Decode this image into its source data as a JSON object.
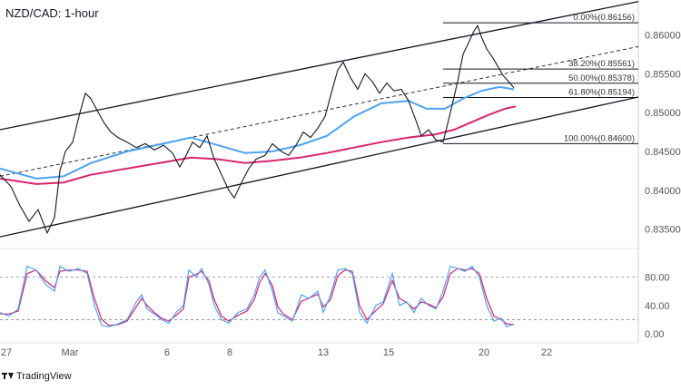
{
  "chart_data": [
    {
      "type": "line",
      "title": "NZD/CAD: 1-hour",
      "brand": "TradingView",
      "x_ticks": [
        "27",
        "Mar",
        "6",
        "8",
        "13",
        "15",
        "20",
        "22"
      ],
      "y_ticks": [
        "0.86000",
        "0.85500",
        "0.85000",
        "0.84500",
        "0.84000",
        "0.83500"
      ],
      "ylim": [
        0.8325,
        0.8645
      ],
      "colors": {
        "price": "#131722",
        "ma_fast": "#4ea3ef",
        "ma_slow": "#d6246e",
        "channel": "#131722"
      },
      "price_path": [
        [
          0,
          0.842
        ],
        [
          12,
          0.8405
        ],
        [
          22,
          0.838
        ],
        [
          32,
          0.836
        ],
        [
          42,
          0.8375
        ],
        [
          52,
          0.8345
        ],
        [
          60,
          0.8365
        ],
        [
          66,
          0.8425
        ],
        [
          72,
          0.845
        ],
        [
          80,
          0.8462
        ],
        [
          88,
          0.85
        ],
        [
          94,
          0.8525
        ],
        [
          100,
          0.8518
        ],
        [
          106,
          0.8505
        ],
        [
          114,
          0.8488
        ],
        [
          122,
          0.8475
        ],
        [
          130,
          0.8468
        ],
        [
          140,
          0.8462
        ],
        [
          150,
          0.8455
        ],
        [
          160,
          0.846
        ],
        [
          170,
          0.8452
        ],
        [
          180,
          0.8458
        ],
        [
          190,
          0.8448
        ],
        [
          198,
          0.843
        ],
        [
          205,
          0.8445
        ],
        [
          212,
          0.8462
        ],
        [
          220,
          0.8455
        ],
        [
          228,
          0.847
        ],
        [
          236,
          0.844
        ],
        [
          244,
          0.842
        ],
        [
          252,
          0.84
        ],
        [
          258,
          0.839
        ],
        [
          266,
          0.841
        ],
        [
          274,
          0.8428
        ],
        [
          282,
          0.844
        ],
        [
          292,
          0.8445
        ],
        [
          300,
          0.846
        ],
        [
          310,
          0.845
        ],
        [
          318,
          0.8445
        ],
        [
          326,
          0.8458
        ],
        [
          334,
          0.8475
        ],
        [
          342,
          0.8468
        ],
        [
          350,
          0.848
        ],
        [
          358,
          0.8495
        ],
        [
          366,
          0.853
        ],
        [
          372,
          0.8555
        ],
        [
          378,
          0.8565
        ],
        [
          386,
          0.8545
        ],
        [
          394,
          0.853
        ],
        [
          402,
          0.855
        ],
        [
          410,
          0.854
        ],
        [
          418,
          0.8525
        ],
        [
          426,
          0.8538
        ],
        [
          434,
          0.8528
        ],
        [
          442,
          0.853
        ],
        [
          450,
          0.8515
        ],
        [
          458,
          0.849
        ],
        [
          464,
          0.847
        ],
        [
          472,
          0.8478
        ],
        [
          480,
          0.8465
        ],
        [
          488,
          0.8462
        ],
        [
          496,
          0.85
        ],
        [
          504,
          0.854
        ],
        [
          510,
          0.8575
        ],
        [
          516,
          0.859
        ],
        [
          522,
          0.8605
        ],
        [
          526,
          0.8612
        ],
        [
          530,
          0.8598
        ],
        [
          536,
          0.8582
        ],
        [
          542,
          0.8572
        ],
        [
          548,
          0.856
        ],
        [
          554,
          0.8548
        ],
        [
          560,
          0.854
        ],
        [
          566,
          0.8532
        ]
      ],
      "ma_fast_path": [
        [
          0,
          0.8428
        ],
        [
          40,
          0.8415
        ],
        [
          70,
          0.8418
        ],
        [
          100,
          0.8435
        ],
        [
          140,
          0.845
        ],
        [
          180,
          0.846
        ],
        [
          210,
          0.8468
        ],
        [
          240,
          0.8458
        ],
        [
          270,
          0.8448
        ],
        [
          300,
          0.845
        ],
        [
          330,
          0.8458
        ],
        [
          360,
          0.847
        ],
        [
          390,
          0.8495
        ],
        [
          420,
          0.8512
        ],
        [
          450,
          0.8515
        ],
        [
          470,
          0.8505
        ],
        [
          490,
          0.8505
        ],
        [
          510,
          0.8518
        ],
        [
          530,
          0.8528
        ],
        [
          550,
          0.8533
        ],
        [
          566,
          0.853
        ]
      ],
      "ma_slow_path": [
        [
          0,
          0.8415
        ],
        [
          40,
          0.8408
        ],
        [
          70,
          0.841
        ],
        [
          100,
          0.842
        ],
        [
          140,
          0.8428
        ],
        [
          180,
          0.8436
        ],
        [
          210,
          0.8442
        ],
        [
          240,
          0.844
        ],
        [
          270,
          0.8435
        ],
        [
          300,
          0.8438
        ],
        [
          330,
          0.8442
        ],
        [
          360,
          0.8448
        ],
        [
          390,
          0.8455
        ],
        [
          420,
          0.8462
        ],
        [
          450,
          0.8468
        ],
        [
          480,
          0.8472
        ],
        [
          500,
          0.8478
        ],
        [
          520,
          0.8488
        ],
        [
          540,
          0.8498
        ],
        [
          556,
          0.8505
        ],
        [
          568,
          0.8508
        ]
      ],
      "channel_upper": [
        [
          0,
          0.8478
        ],
        [
          703,
          0.8643
        ]
      ],
      "channel_mid": [
        [
          0,
          0.8418
        ],
        [
          703,
          0.8585
        ]
      ],
      "channel_lower": [
        [
          0,
          0.834
        ],
        [
          703,
          0.852
        ]
      ],
      "fib_levels": [
        {
          "label": "0.00%(0.86156)",
          "value": 0.86156
        },
        {
          "label": "38.20%(0.85561)",
          "value": 0.85561
        },
        {
          "label": "50.00%(0.85378)",
          "value": 0.85378
        },
        {
          "label": "61.80%(0.85194)",
          "value": 0.85194
        },
        {
          "label": "100.00%(0.84600)",
          "value": 0.846
        }
      ]
    },
    {
      "type": "line",
      "title": "",
      "y_ticks": [
        "80.00",
        "40.00",
        "0.00"
      ],
      "ylim": [
        -5,
        110
      ],
      "overbought": 80,
      "oversold": 20,
      "colors": {
        "k_line": "#4ea3ef",
        "d_line": "#d6246e"
      },
      "k_path": [
        [
          0,
          30
        ],
        [
          10,
          25
        ],
        [
          20,
          35
        ],
        [
          30,
          95
        ],
        [
          40,
          90
        ],
        [
          50,
          70
        ],
        [
          60,
          60
        ],
        [
          66,
          95
        ],
        [
          76,
          88
        ],
        [
          86,
          92
        ],
        [
          96,
          85
        ],
        [
          104,
          40
        ],
        [
          112,
          12
        ],
        [
          120,
          10
        ],
        [
          130,
          14
        ],
        [
          140,
          20
        ],
        [
          150,
          45
        ],
        [
          156,
          55
        ],
        [
          162,
          35
        ],
        [
          170,
          28
        ],
        [
          178,
          20
        ],
        [
          186,
          15
        ],
        [
          194,
          30
        ],
        [
          202,
          40
        ],
        [
          208,
          90
        ],
        [
          216,
          80
        ],
        [
          222,
          92
        ],
        [
          230,
          70
        ],
        [
          236,
          40
        ],
        [
          244,
          20
        ],
        [
          252,
          15
        ],
        [
          262,
          30
        ],
        [
          272,
          35
        ],
        [
          280,
          55
        ],
        [
          286,
          80
        ],
        [
          292,
          90
        ],
        [
          300,
          60
        ],
        [
          306,
          30
        ],
        [
          312,
          25
        ],
        [
          322,
          18
        ],
        [
          332,
          55
        ],
        [
          340,
          50
        ],
        [
          350,
          60
        ],
        [
          356,
          30
        ],
        [
          364,
          55
        ],
        [
          372,
          90
        ],
        [
          380,
          92
        ],
        [
          388,
          85
        ],
        [
          396,
          30
        ],
        [
          404,
          15
        ],
        [
          414,
          40
        ],
        [
          422,
          45
        ],
        [
          432,
          85
        ],
        [
          440,
          40
        ],
        [
          448,
          45
        ],
        [
          456,
          30
        ],
        [
          464,
          50
        ],
        [
          472,
          40
        ],
        [
          480,
          35
        ],
        [
          488,
          60
        ],
        [
          496,
          95
        ],
        [
          504,
          92
        ],
        [
          512,
          88
        ],
        [
          520,
          95
        ],
        [
          528,
          80
        ],
        [
          536,
          40
        ],
        [
          544,
          18
        ],
        [
          552,
          22
        ],
        [
          558,
          10
        ],
        [
          566,
          14
        ]
      ],
      "d_path": [
        [
          0,
          28
        ],
        [
          10,
          28
        ],
        [
          20,
          32
        ],
        [
          30,
          85
        ],
        [
          40,
          90
        ],
        [
          50,
          75
        ],
        [
          60,
          65
        ],
        [
          66,
          88
        ],
        [
          76,
          90
        ],
        [
          86,
          90
        ],
        [
          96,
          88
        ],
        [
          104,
          50
        ],
        [
          112,
          20
        ],
        [
          120,
          12
        ],
        [
          130,
          13
        ],
        [
          140,
          18
        ],
        [
          150,
          38
        ],
        [
          156,
          50
        ],
        [
          162,
          40
        ],
        [
          170,
          30
        ],
        [
          178,
          22
        ],
        [
          186,
          18
        ],
        [
          194,
          26
        ],
        [
          202,
          35
        ],
        [
          208,
          80
        ],
        [
          216,
          84
        ],
        [
          222,
          88
        ],
        [
          230,
          75
        ],
        [
          236,
          48
        ],
        [
          244,
          25
        ],
        [
          252,
          18
        ],
        [
          262,
          26
        ],
        [
          272,
          32
        ],
        [
          280,
          48
        ],
        [
          286,
          72
        ],
        [
          292,
          85
        ],
        [
          300,
          68
        ],
        [
          306,
          38
        ],
        [
          312,
          28
        ],
        [
          322,
          20
        ],
        [
          332,
          46
        ],
        [
          340,
          50
        ],
        [
          350,
          56
        ],
        [
          356,
          38
        ],
        [
          364,
          48
        ],
        [
          372,
          82
        ],
        [
          380,
          90
        ],
        [
          388,
          88
        ],
        [
          396,
          40
        ],
        [
          404,
          20
        ],
        [
          414,
          33
        ],
        [
          422,
          42
        ],
        [
          432,
          75
        ],
        [
          440,
          50
        ],
        [
          448,
          44
        ],
        [
          456,
          35
        ],
        [
          464,
          45
        ],
        [
          472,
          42
        ],
        [
          480,
          37
        ],
        [
          488,
          52
        ],
        [
          496,
          85
        ],
        [
          504,
          92
        ],
        [
          512,
          90
        ],
        [
          520,
          92
        ],
        [
          528,
          85
        ],
        [
          536,
          50
        ],
        [
          544,
          25
        ],
        [
          552,
          20
        ],
        [
          558,
          14
        ],
        [
          566,
          13
        ]
      ]
    }
  ]
}
